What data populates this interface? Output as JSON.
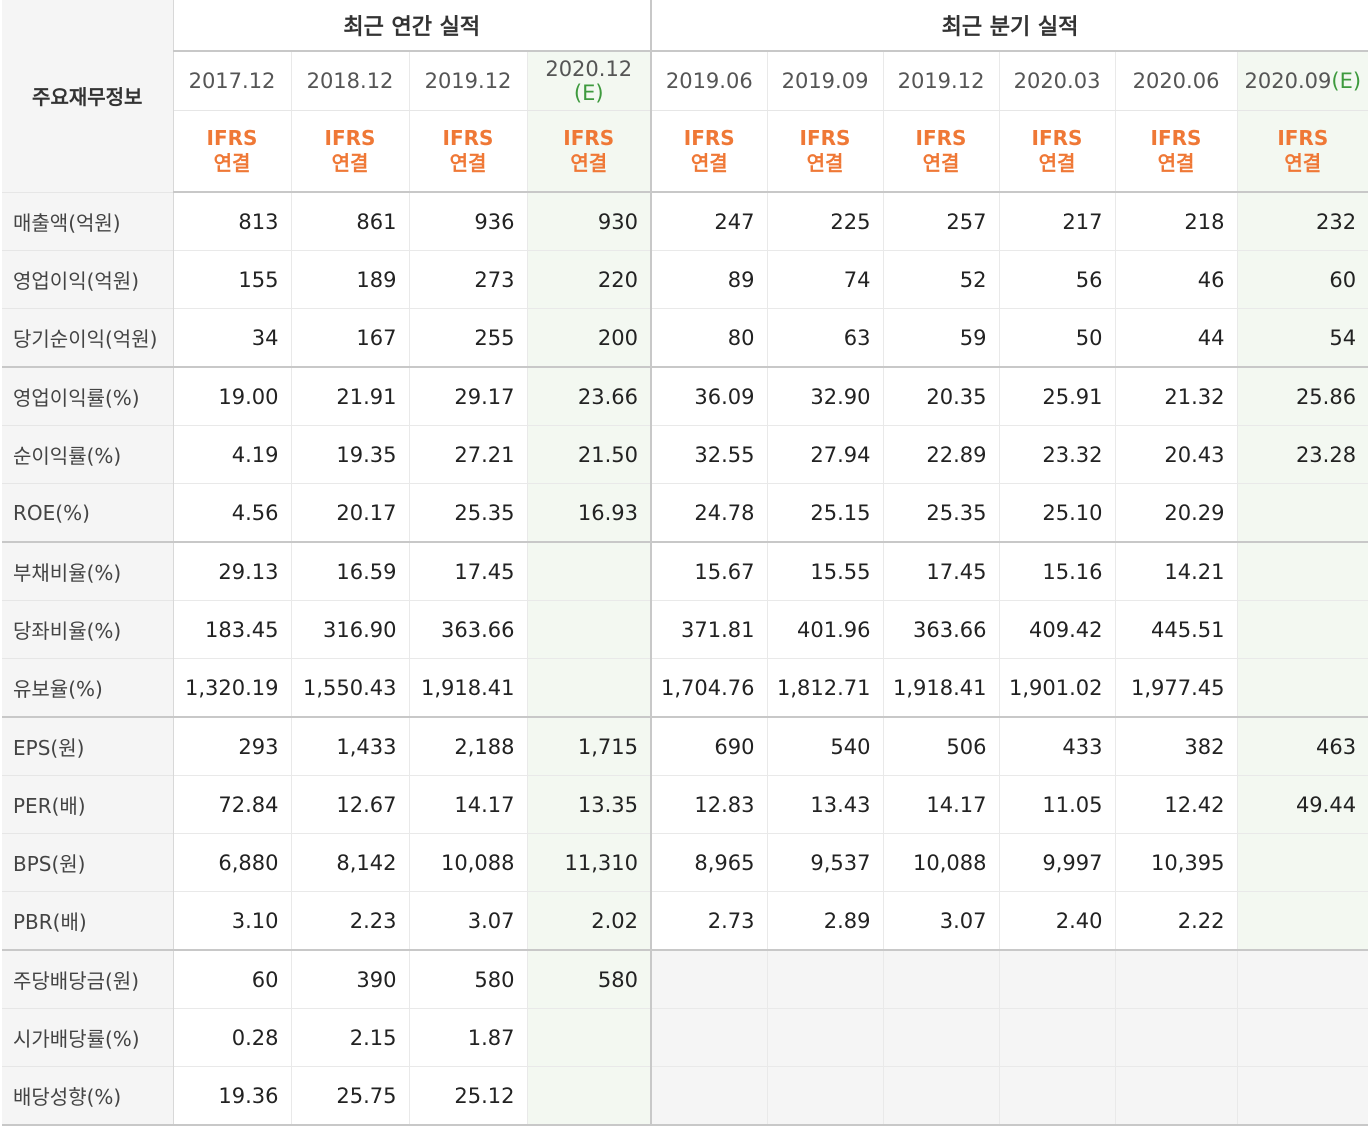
{
  "header": {
    "title": "주요재무정보",
    "annual_group": "최근 연간 실적",
    "quarter_group": "최근 분기 실적",
    "ifrs_line1": "IFRS",
    "ifrs_line2": "연결",
    "estimate_mark": "(E)"
  },
  "periods": {
    "annual": [
      "2017.12",
      "2018.12",
      "2019.12",
      "2020.12"
    ],
    "quarter": [
      "2019.06",
      "2019.09",
      "2019.12",
      "2020.03",
      "2020.06",
      "2020.09"
    ]
  },
  "rows": [
    {
      "label": "매출액(억원)",
      "values": [
        "813",
        "861",
        "936",
        "930",
        "247",
        "225",
        "257",
        "217",
        "218",
        "232"
      ]
    },
    {
      "label": "영업이익(억원)",
      "values": [
        "155",
        "189",
        "273",
        "220",
        "89",
        "74",
        "52",
        "56",
        "46",
        "60"
      ]
    },
    {
      "label": "당기순이익(억원)",
      "values": [
        "34",
        "167",
        "255",
        "200",
        "80",
        "63",
        "59",
        "50",
        "44",
        "54"
      ]
    },
    {
      "label": "영업이익률(%)",
      "values": [
        "19.00",
        "21.91",
        "29.17",
        "23.66",
        "36.09",
        "32.90",
        "20.35",
        "25.91",
        "21.32",
        "25.86"
      ]
    },
    {
      "label": "순이익률(%)",
      "values": [
        "4.19",
        "19.35",
        "27.21",
        "21.50",
        "32.55",
        "27.94",
        "22.89",
        "23.32",
        "20.43",
        "23.28"
      ]
    },
    {
      "label": "ROE(%)",
      "values": [
        "4.56",
        "20.17",
        "25.35",
        "16.93",
        "24.78",
        "25.15",
        "25.35",
        "25.10",
        "20.29",
        ""
      ]
    },
    {
      "label": "부채비율(%)",
      "values": [
        "29.13",
        "16.59",
        "17.45",
        "",
        "15.67",
        "15.55",
        "17.45",
        "15.16",
        "14.21",
        ""
      ]
    },
    {
      "label": "당좌비율(%)",
      "values": [
        "183.45",
        "316.90",
        "363.66",
        "",
        "371.81",
        "401.96",
        "363.66",
        "409.42",
        "445.51",
        ""
      ]
    },
    {
      "label": "유보율(%)",
      "values": [
        "1,320.19",
        "1,550.43",
        "1,918.41",
        "",
        "1,704.76",
        "1,812.71",
        "1,918.41",
        "1,901.02",
        "1,977.45",
        ""
      ]
    },
    {
      "label": "EPS(원)",
      "values": [
        "293",
        "1,433",
        "2,188",
        "1,715",
        "690",
        "540",
        "506",
        "433",
        "382",
        "463"
      ]
    },
    {
      "label": "PER(배)",
      "values": [
        "72.84",
        "12.67",
        "14.17",
        "13.35",
        "12.83",
        "13.43",
        "14.17",
        "11.05",
        "12.42",
        "49.44"
      ]
    },
    {
      "label": "BPS(원)",
      "values": [
        "6,880",
        "8,142",
        "10,088",
        "11,310",
        "8,965",
        "9,537",
        "10,088",
        "9,997",
        "10,395",
        ""
      ]
    },
    {
      "label": "PBR(배)",
      "values": [
        "3.10",
        "2.23",
        "3.07",
        "2.02",
        "2.73",
        "2.89",
        "3.07",
        "2.40",
        "2.22",
        ""
      ]
    },
    {
      "label": "주당배당금(원)",
      "values": [
        "60",
        "390",
        "580",
        "580",
        "",
        "",
        "",
        "",
        "",
        ""
      ]
    },
    {
      "label": "시가배당률(%)",
      "values": [
        "0.28",
        "2.15",
        "1.87",
        "",
        "",
        "",
        "",
        "",
        "",
        ""
      ]
    },
    {
      "label": "배당성향(%)",
      "values": [
        "19.36",
        "25.75",
        "25.12",
        "",
        "",
        "",
        "",
        "",
        "",
        ""
      ]
    }
  ],
  "colors": {
    "ifrs": "#ef7836",
    "estimate_bg": "#f3f8f1",
    "estimate_mark": "#3e9a3e",
    "label_bg": "#f5f5f5"
  }
}
